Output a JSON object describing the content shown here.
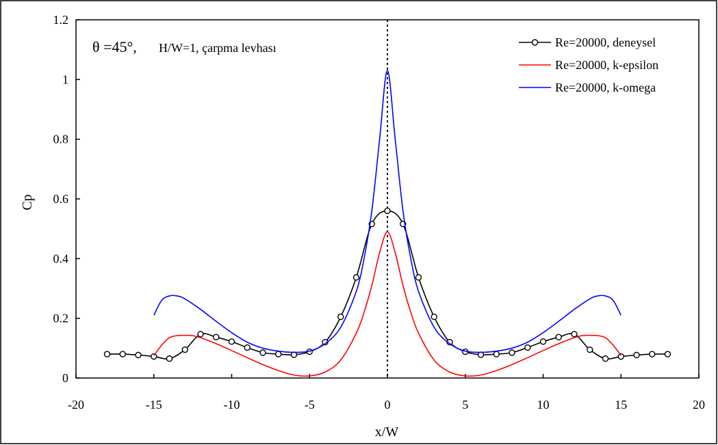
{
  "chart_data": {
    "type": "line",
    "title": "",
    "annotation": {
      "theta": "θ =45°,",
      "rest": "H/W=1, çarpma levhası"
    },
    "xlabel": "x/W",
    "ylabel": "Cp",
    "xlim": [
      -20,
      20
    ],
    "ylim": [
      0,
      1.2
    ],
    "xticks": [
      -20,
      -15,
      -10,
      -5,
      0,
      5,
      10,
      15,
      20
    ],
    "yticks": [
      0,
      0.2,
      0.4,
      0.6,
      0.8,
      1,
      1.2
    ],
    "xtick_labels": [
      "-20",
      "-15",
      "-10",
      "-5",
      "0",
      "5",
      "10",
      "15",
      "20"
    ],
    "ytick_labels": [
      "0",
      "0.2",
      "0.4",
      "0.6",
      "0.8",
      "1",
      "1.2"
    ],
    "grid": false,
    "legend_position": "top-right",
    "reference_line": {
      "x": 0,
      "style": "dotted"
    },
    "series": [
      {
        "name": "Re=20000, deneysel",
        "color": "#000000",
        "marker": "circle",
        "x": [
          -18,
          -17,
          -16,
          -15,
          -14,
          -13,
          -12,
          -11,
          -10,
          -9,
          -8,
          -7,
          -6,
          -5,
          -4,
          -3,
          -2,
          -1,
          0,
          1,
          2,
          3,
          4,
          5,
          6,
          7,
          8,
          9,
          10,
          11,
          12,
          13,
          14,
          15,
          16,
          17,
          18
        ],
        "y": [
          0.08,
          0.08,
          0.077,
          0.072,
          0.065,
          0.095,
          0.147,
          0.137,
          0.122,
          0.102,
          0.085,
          0.08,
          0.078,
          0.088,
          0.12,
          0.205,
          0.337,
          0.516,
          0.56,
          0.516,
          0.337,
          0.205,
          0.12,
          0.088,
          0.078,
          0.08,
          0.085,
          0.102,
          0.122,
          0.137,
          0.147,
          0.095,
          0.065,
          0.072,
          0.077,
          0.08,
          0.08
        ]
      },
      {
        "name": "Re=20000, k-epsilon",
        "color": "#ff0000",
        "marker": "none",
        "x": [
          -15,
          -14.5,
          -14,
          -13.5,
          -13,
          -12.5,
          -12,
          -11,
          -10,
          -9,
          -8,
          -7,
          -6,
          -5,
          -4,
          -3,
          -2,
          -1.5,
          -1,
          -0.5,
          0,
          0.5,
          1,
          1.5,
          2,
          3,
          4,
          5,
          6,
          7,
          8,
          9,
          10,
          11,
          12,
          12.5,
          13,
          13.5,
          14,
          14.5,
          15
        ],
        "y": [
          0.075,
          0.11,
          0.135,
          0.142,
          0.143,
          0.142,
          0.135,
          0.115,
          0.092,
          0.068,
          0.045,
          0.025,
          0.01,
          0.007,
          0.02,
          0.06,
          0.15,
          0.22,
          0.31,
          0.42,
          0.49,
          0.42,
          0.31,
          0.22,
          0.15,
          0.06,
          0.02,
          0.007,
          0.01,
          0.025,
          0.045,
          0.068,
          0.092,
          0.115,
          0.135,
          0.142,
          0.143,
          0.142,
          0.135,
          0.11,
          0.075
        ]
      },
      {
        "name": "Re=20000, k-omega",
        "color": "#0000ff",
        "marker": "none",
        "x": [
          -15,
          -14.5,
          -14,
          -13.5,
          -13,
          -12,
          -11,
          -10,
          -9,
          -8,
          -7,
          -6,
          -5,
          -4,
          -3,
          -2,
          -1.5,
          -1,
          -0.5,
          0,
          0.5,
          1,
          1.5,
          2,
          3,
          4,
          5,
          6,
          7,
          8,
          9,
          10,
          11,
          12,
          13,
          13.5,
          14,
          14.5,
          15
        ],
        "y": [
          0.21,
          0.26,
          0.275,
          0.275,
          0.265,
          0.23,
          0.19,
          0.152,
          0.12,
          0.1,
          0.09,
          0.086,
          0.09,
          0.115,
          0.17,
          0.29,
          0.4,
          0.56,
          0.8,
          1.03,
          0.8,
          0.56,
          0.4,
          0.29,
          0.17,
          0.115,
          0.09,
          0.086,
          0.09,
          0.1,
          0.12,
          0.152,
          0.19,
          0.23,
          0.265,
          0.275,
          0.275,
          0.26,
          0.21
        ]
      }
    ]
  }
}
